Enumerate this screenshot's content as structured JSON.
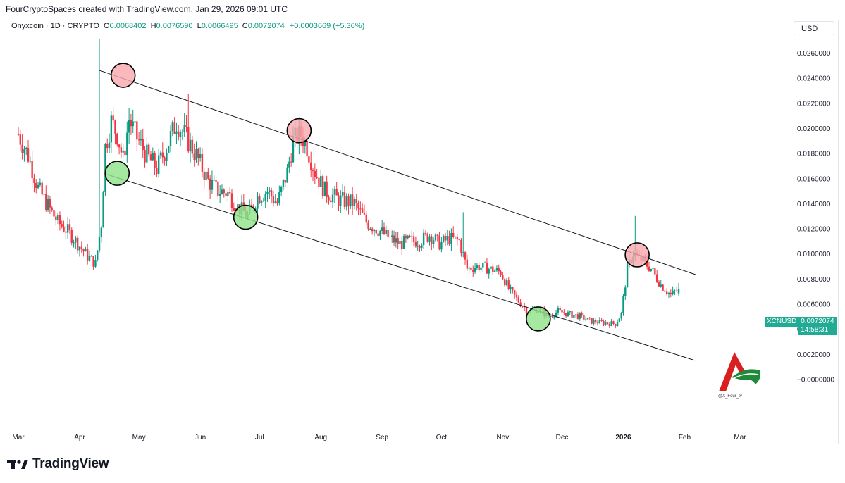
{
  "header": {
    "credit": "FourCryptoSpaces created with TradingView.com, Jan 29, 2026 09:01 UTC"
  },
  "legend": {
    "symbol": "Onyxcoin · 1D · CRYPTO",
    "open_label": "O",
    "open": "0.0068402",
    "high_label": "H",
    "high": "0.0076590",
    "low_label": "L",
    "low": "0.0066495",
    "close_label": "C",
    "close": "0.0072074",
    "change": "+0.0003669 (+5.36%)"
  },
  "currency_button": "USD",
  "price_label": {
    "ticker": "XCNUSD",
    "price": "0.0072074",
    "countdown": "14:58:31"
  },
  "watermark": {
    "handle": "@X_Four_tv"
  },
  "brand": {
    "name": "TradingView"
  },
  "colors": {
    "up": "#089981",
    "down": "#f23645",
    "resistance_marker": "#f7a8ad",
    "support_marker": "#8fe38a",
    "channel_line": "#131722"
  },
  "chart_data": {
    "type": "candlestick",
    "title": "Onyxcoin · 1D · CRYPTO",
    "currency": "USD",
    "y_ticks": [
      "0.0260000",
      "0.0240000",
      "0.0220000",
      "0.0200000",
      "0.0180000",
      "0.0160000",
      "0.0140000",
      "0.0120000",
      "0.0100000",
      "0.0080000",
      "0.0060000",
      "0.0040000",
      "0.0020000",
      "−0.0000000"
    ],
    "y_tick_values": [
      0.026,
      0.024,
      0.022,
      0.02,
      0.018,
      0.016,
      0.014,
      0.012,
      0.01,
      0.008,
      0.006,
      0.004,
      0.002,
      0.0
    ],
    "ylim": [
      -0.0005,
      0.0275
    ],
    "x_ticks": [
      "Mar",
      "Apr",
      "May",
      "Jun",
      "Jul",
      "Aug",
      "Sep",
      "Oct",
      "Nov",
      "Dec",
      "2026",
      "Feb",
      "Mar"
    ],
    "x_tick_dates": [
      "2025-03-01",
      "2025-04-01",
      "2025-05-01",
      "2025-06-01",
      "2025-07-01",
      "2025-08-01",
      "2025-09-01",
      "2025-10-01",
      "2025-11-01",
      "2025-12-01",
      "2026-01-01",
      "2026-02-01",
      "2026-03-01"
    ],
    "bold_x_tick": "2026",
    "price_path": [
      [
        "2025-03-01",
        0.0195
      ],
      [
        "2025-03-06",
        0.0178
      ],
      [
        "2025-03-11",
        0.0152
      ],
      [
        "2025-03-16",
        0.0138
      ],
      [
        "2025-03-21",
        0.0125
      ],
      [
        "2025-03-26",
        0.0118
      ],
      [
        "2025-03-31",
        0.0108
      ],
      [
        "2025-04-05",
        0.0098
      ],
      [
        "2025-04-09",
        0.0092
      ],
      [
        "2025-04-12",
        0.0124
      ],
      [
        "2025-04-14",
        0.0185
      ],
      [
        "2025-04-17",
        0.0205
      ],
      [
        "2025-04-20",
        0.0195
      ],
      [
        "2025-04-23",
        0.0175
      ],
      [
        "2025-04-26",
        0.0207
      ],
      [
        "2025-04-30",
        0.0192
      ],
      [
        "2025-05-05",
        0.0178
      ],
      [
        "2025-05-10",
        0.0168
      ],
      [
        "2025-05-15",
        0.0185
      ],
      [
        "2025-05-20",
        0.0205
      ],
      [
        "2025-05-25",
        0.0192
      ],
      [
        "2025-05-30",
        0.0178
      ],
      [
        "2025-06-05",
        0.0158
      ],
      [
        "2025-06-10",
        0.015
      ],
      [
        "2025-06-15",
        0.0148
      ],
      [
        "2025-06-20",
        0.0137
      ],
      [
        "2025-06-25",
        0.013
      ],
      [
        "2025-06-30",
        0.0145
      ],
      [
        "2025-07-05",
        0.015
      ],
      [
        "2025-07-10",
        0.014
      ],
      [
        "2025-07-15",
        0.0165
      ],
      [
        "2025-07-18",
        0.019
      ],
      [
        "2025-07-22",
        0.0195
      ],
      [
        "2025-07-25",
        0.0185
      ],
      [
        "2025-07-29",
        0.0165
      ],
      [
        "2025-08-03",
        0.015
      ],
      [
        "2025-08-10",
        0.0143
      ],
      [
        "2025-08-18",
        0.014
      ],
      [
        "2025-08-24",
        0.0125
      ],
      [
        "2025-08-31",
        0.0118
      ],
      [
        "2025-09-05",
        0.0112
      ],
      [
        "2025-09-10",
        0.0108
      ],
      [
        "2025-09-15",
        0.011
      ],
      [
        "2025-09-20",
        0.011
      ],
      [
        "2025-09-25",
        0.0115
      ],
      [
        "2025-09-30",
        0.0108
      ],
      [
        "2025-10-05",
        0.0112
      ],
      [
        "2025-10-10",
        0.011
      ],
      [
        "2025-10-14",
        0.0088
      ],
      [
        "2025-10-19",
        0.009
      ],
      [
        "2025-10-25",
        0.0088
      ],
      [
        "2025-10-31",
        0.0085
      ],
      [
        "2025-11-04",
        0.0072
      ],
      [
        "2025-11-09",
        0.0062
      ],
      [
        "2025-11-14",
        0.0054
      ],
      [
        "2025-11-19",
        0.0056
      ],
      [
        "2025-11-24",
        0.005
      ],
      [
        "2025-11-29",
        0.0054
      ],
      [
        "2025-12-04",
        0.0052
      ],
      [
        "2025-12-10",
        0.005
      ],
      [
        "2025-12-16",
        0.0046
      ],
      [
        "2025-12-22",
        0.0045
      ],
      [
        "2025-12-28",
        0.0044
      ],
      [
        "2025-12-31",
        0.0052
      ],
      [
        "2026-01-03",
        0.0088
      ],
      [
        "2026-01-06",
        0.01
      ],
      [
        "2026-01-10",
        0.0095
      ],
      [
        "2026-01-15",
        0.0088
      ],
      [
        "2026-01-20",
        0.0075
      ],
      [
        "2026-01-25",
        0.0067
      ],
      [
        "2026-01-29",
        0.0072
      ]
    ],
    "spikes": [
      {
        "date": "2025-04-11",
        "high": 0.0271
      },
      {
        "date": "2025-05-26",
        "high": 0.0227
      },
      {
        "date": "2025-10-12",
        "high": 0.0133
      },
      {
        "date": "2026-01-07",
        "high": 0.013
      }
    ],
    "last": {
      "date": "2026-01-29",
      "open": 0.0068402,
      "high": 0.007659,
      "low": 0.0066495,
      "close": 0.0072074
    },
    "channel": {
      "upper": {
        "start": [
          "2025-04-11",
          0.0246
        ],
        "end": [
          "2026-02-07",
          0.0083
        ]
      },
      "lower": {
        "start": [
          "2025-04-15",
          0.0163
        ],
        "end": [
          "2026-02-06",
          0.0015
        ]
      }
    },
    "markers": [
      {
        "kind": "resistance",
        "date": "2025-04-23",
        "value": 0.0242
      },
      {
        "kind": "resistance",
        "date": "2025-07-21",
        "value": 0.0198
      },
      {
        "kind": "resistance",
        "date": "2026-01-08",
        "value": 0.0099
      },
      {
        "kind": "support",
        "date": "2025-04-20",
        "value": 0.0164
      },
      {
        "kind": "support",
        "date": "2025-06-24",
        "value": 0.0129
      },
      {
        "kind": "support",
        "date": "2025-11-19",
        "value": 0.0048
      }
    ]
  }
}
